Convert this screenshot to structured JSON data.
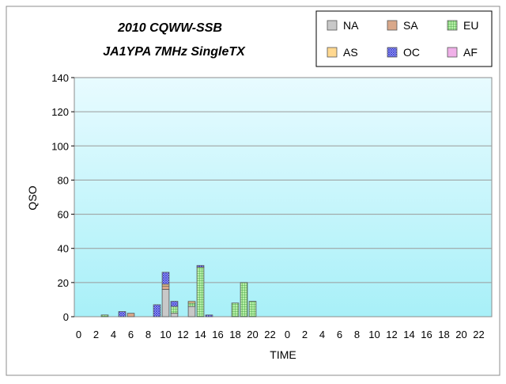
{
  "chart_data": {
    "type": "bar",
    "stacked": true,
    "title_line1": "2010 CQWW-SSB",
    "title_line2": "JA1YPA  7MHz  SingleTX",
    "xlabel": "TIME",
    "ylabel": "QSO",
    "ylim": [
      0,
      140
    ],
    "yticks": [
      0,
      20,
      40,
      60,
      80,
      100,
      120,
      140
    ],
    "grid": true,
    "legend_position": "top-right",
    "hours": [
      0,
      1,
      2,
      3,
      4,
      5,
      6,
      7,
      8,
      9,
      10,
      11,
      12,
      13,
      14,
      15,
      16,
      17,
      18,
      19,
      20,
      21,
      22,
      23,
      0,
      1,
      2,
      3,
      4,
      5,
      6,
      7,
      8,
      9,
      10,
      11,
      12,
      13,
      14,
      15,
      16,
      17,
      18,
      19,
      20,
      21,
      22,
      23
    ],
    "tick_labels": [
      "0",
      "2",
      "4",
      "6",
      "8",
      "10",
      "12",
      "14",
      "16",
      "18",
      "20",
      "22",
      "0",
      "2",
      "4",
      "6",
      "8",
      "10",
      "12",
      "14",
      "16",
      "18",
      "20",
      "22"
    ],
    "series": [
      {
        "name": "NA",
        "color": "#c8c8c8",
        "pattern": "none",
        "values": [
          0,
          0,
          0,
          0,
          0,
          0,
          0,
          0,
          0,
          0,
          16,
          2,
          0,
          6,
          0,
          0,
          0,
          0,
          0,
          0,
          0,
          0,
          0,
          0,
          0,
          0,
          0,
          0,
          0,
          0,
          0,
          0,
          0,
          0,
          0,
          0,
          0,
          0,
          0,
          0,
          0,
          0,
          0,
          0,
          0,
          0,
          0,
          0
        ]
      },
      {
        "name": "SA",
        "color": "#d9a88a",
        "pattern": "none",
        "values": [
          0,
          0,
          0,
          0,
          0,
          0,
          2,
          0,
          0,
          0,
          2,
          0,
          0,
          0,
          0,
          0,
          0,
          0,
          0,
          0,
          0,
          0,
          0,
          0,
          0,
          0,
          0,
          0,
          0,
          0,
          0,
          0,
          0,
          0,
          0,
          0,
          0,
          0,
          0,
          0,
          0,
          0,
          0,
          0,
          0,
          0,
          0,
          0
        ]
      },
      {
        "name": "EU",
        "color": "#b8f0a8",
        "pattern": "grid",
        "values": [
          0,
          0,
          0,
          1,
          0,
          0,
          0,
          0,
          0,
          0,
          0,
          4,
          0,
          2,
          29,
          0,
          0,
          0,
          8,
          20,
          9,
          0,
          0,
          0,
          0,
          0,
          0,
          0,
          0,
          0,
          0,
          0,
          0,
          0,
          0,
          0,
          0,
          0,
          0,
          0,
          0,
          0,
          0,
          0,
          0,
          0,
          0,
          0
        ]
      },
      {
        "name": "AS",
        "color": "#ffd890",
        "pattern": "none",
        "values": [
          0,
          0,
          0,
          0,
          0,
          0,
          0,
          0,
          0,
          0,
          1,
          0,
          0,
          1,
          0,
          0,
          0,
          0,
          0,
          0,
          0,
          0,
          0,
          0,
          0,
          0,
          0,
          0,
          0,
          0,
          0,
          0,
          0,
          0,
          0,
          0,
          0,
          0,
          0,
          0,
          0,
          0,
          0,
          0,
          0,
          0,
          0,
          0
        ]
      },
      {
        "name": "OC",
        "color": "#b8c0f8",
        "pattern": "cross",
        "values": [
          0,
          0,
          0,
          0,
          0,
          3,
          0,
          0,
          0,
          7,
          7,
          3,
          0,
          0,
          1,
          1,
          0,
          0,
          0,
          0,
          0,
          0,
          0,
          0,
          0,
          0,
          0,
          0,
          0,
          0,
          0,
          0,
          0,
          0,
          0,
          0,
          0,
          0,
          0,
          0,
          0,
          0,
          0,
          0,
          0,
          0,
          0,
          0
        ]
      },
      {
        "name": "AF",
        "color": "#f0b0e8",
        "pattern": "none",
        "values": [
          0,
          0,
          0,
          0,
          0,
          0,
          0,
          0,
          0,
          0,
          0,
          0,
          0,
          0,
          0,
          0,
          0,
          0,
          0,
          0,
          0,
          0,
          0,
          0,
          0,
          0,
          0,
          0,
          0,
          0,
          0,
          0,
          0,
          0,
          0,
          0,
          0,
          0,
          0,
          0,
          0,
          0,
          0,
          0,
          0,
          0,
          0,
          0
        ]
      }
    ],
    "colors": {
      "plot_bg_top": "#e8fbff",
      "plot_bg_bottom": "#a8f0f8",
      "grid": "#9a9a9a",
      "frame": "#8c8c8c"
    }
  }
}
